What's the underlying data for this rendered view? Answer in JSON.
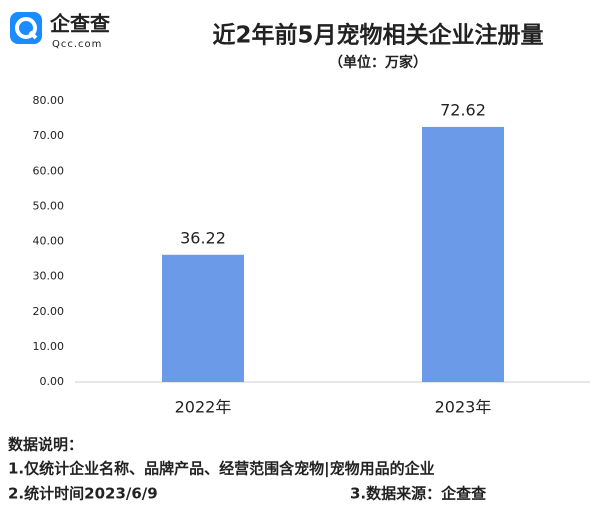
{
  "logo": {
    "name": "企查查",
    "domain": "Qcc.com"
  },
  "chart_data": {
    "type": "bar",
    "title": "近2年前5月宠物相关企业注册量",
    "subtitle": "（单位：万家）",
    "categories": [
      "2022年",
      "2023年"
    ],
    "values": [
      36.22,
      72.62
    ],
    "color": "#6b9ae8",
    "ylim": [
      0,
      80
    ],
    "yticks": [
      {
        "value": 0,
        "label": "0.00"
      },
      {
        "value": 10,
        "label": "10.00"
      },
      {
        "value": 20,
        "label": "20.00"
      },
      {
        "value": 30,
        "label": "30.00"
      },
      {
        "value": 40,
        "label": "40.00"
      },
      {
        "value": 50,
        "label": "50.00"
      },
      {
        "value": 60,
        "label": "60.00"
      },
      {
        "value": 70,
        "label": "70.00"
      },
      {
        "value": 80,
        "label": "80.00"
      }
    ],
    "grid": false
  },
  "notes": {
    "heading": "数据说明：",
    "items": [
      "1.仅统计企业名称、品牌产品、经营范围含宠物|宠物用品的企业",
      "2.统计时间2023/6/9",
      "3.数据来源：企查查"
    ]
  }
}
